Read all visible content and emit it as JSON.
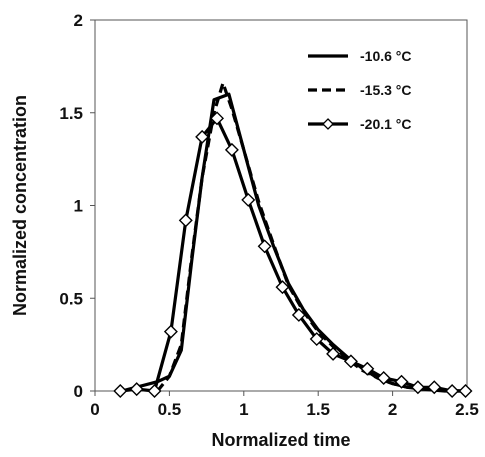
{
  "chart_data": {
    "type": "line",
    "title": "",
    "xlabel": "Normalized time",
    "ylabel": "Normalized concentration",
    "xlim": [
      0,
      2.5
    ],
    "ylim": [
      0,
      2
    ],
    "x_ticks": [
      "0",
      "0.5",
      "1",
      "1.5",
      "2",
      "2.5"
    ],
    "y_ticks": [
      "0",
      "0.5",
      "1",
      "1.5",
      "2"
    ],
    "grid": false,
    "legend_position": "top-right",
    "series": [
      {
        "name": "-10.6 °C",
        "line_style": "solid",
        "marker": "none",
        "color": "#000000",
        "points": [
          [
            0.18,
            0.0
          ],
          [
            0.42,
            0.05
          ],
          [
            0.5,
            0.08
          ],
          [
            0.58,
            0.22
          ],
          [
            0.65,
            0.7
          ],
          [
            0.72,
            1.15
          ],
          [
            0.8,
            1.57
          ],
          [
            0.9,
            1.6
          ],
          [
            1.0,
            1.3
          ],
          [
            1.1,
            1.0
          ],
          [
            1.2,
            0.78
          ],
          [
            1.3,
            0.58
          ],
          [
            1.4,
            0.44
          ],
          [
            1.5,
            0.33
          ],
          [
            1.6,
            0.25
          ],
          [
            1.7,
            0.18
          ],
          [
            1.8,
            0.12
          ],
          [
            1.9,
            0.07
          ],
          [
            2.0,
            0.04
          ],
          [
            2.1,
            0.02
          ],
          [
            2.2,
            0.01
          ],
          [
            2.35,
            0.0
          ],
          [
            2.47,
            0.0
          ]
        ]
      },
      {
        "name": "-15.3 °C",
        "line_style": "dashed",
        "marker": "none",
        "color": "#000000",
        "points": [
          [
            0.42,
            0.0
          ],
          [
            0.5,
            0.08
          ],
          [
            0.58,
            0.25
          ],
          [
            0.65,
            0.72
          ],
          [
            0.72,
            1.15
          ],
          [
            0.8,
            1.5
          ],
          [
            0.86,
            1.66
          ],
          [
            0.92,
            1.52
          ],
          [
            1.0,
            1.3
          ],
          [
            1.1,
            1.02
          ],
          [
            1.2,
            0.79
          ],
          [
            1.3,
            0.57
          ],
          [
            1.4,
            0.43
          ],
          [
            1.5,
            0.32
          ],
          [
            1.6,
            0.24
          ],
          [
            1.7,
            0.17
          ],
          [
            1.8,
            0.11
          ],
          [
            1.9,
            0.07
          ],
          [
            2.0,
            0.04
          ],
          [
            2.1,
            0.02
          ],
          [
            2.2,
            0.01
          ],
          [
            2.47,
            0.0
          ]
        ]
      },
      {
        "name": "-20.1 °C",
        "line_style": "solid",
        "marker": "diamond",
        "color": "#000000",
        "points": [
          [
            0.17,
            0.0
          ],
          [
            0.28,
            0.01
          ],
          [
            0.4,
            0.0
          ],
          [
            0.51,
            0.32
          ],
          [
            0.61,
            0.92
          ],
          [
            0.72,
            1.37
          ],
          [
            0.82,
            1.47
          ],
          [
            0.92,
            1.3
          ],
          [
            1.03,
            1.03
          ],
          [
            1.14,
            0.78
          ],
          [
            1.26,
            0.56
          ],
          [
            1.37,
            0.41
          ],
          [
            1.49,
            0.28
          ],
          [
            1.6,
            0.2
          ],
          [
            1.72,
            0.16
          ],
          [
            1.83,
            0.12
          ],
          [
            1.94,
            0.07
          ],
          [
            2.06,
            0.05
          ],
          [
            2.17,
            0.02
          ],
          [
            2.28,
            0.02
          ],
          [
            2.4,
            0.0
          ],
          [
            2.49,
            0.0
          ]
        ]
      }
    ]
  }
}
